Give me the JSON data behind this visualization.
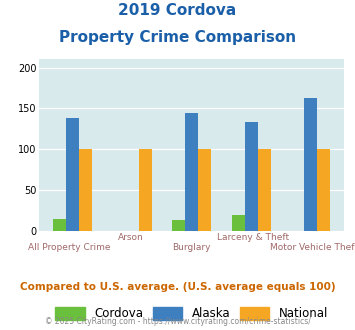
{
  "title_line1": "2019 Cordova",
  "title_line2": "Property Crime Comparison",
  "categories": [
    "All Property Crime",
    "Arson",
    "Burglary",
    "Larceny & Theft",
    "Motor Vehicle Theft"
  ],
  "cordova": [
    15,
    0,
    14,
    19,
    0
  ],
  "alaska": [
    138,
    0,
    145,
    133,
    163
  ],
  "national": [
    100,
    100,
    100,
    100,
    100
  ],
  "bar_colors": {
    "cordova": "#6abf3c",
    "alaska": "#3d7fbf",
    "national": "#f5a623"
  },
  "ylim": [
    0,
    210
  ],
  "yticks": [
    0,
    50,
    100,
    150,
    200
  ],
  "background_color": "#d8eaec",
  "title_color": "#1a5fa8",
  "xlabel_color_upper": "#b07070",
  "xlabel_color_lower": "#a06868",
  "footer_text": "Compared to U.S. average. (U.S. average equals 100)",
  "footer_color": "#cc6600",
  "copyright_text": "© 2025 CityRating.com - https://www.cityrating.com/crime-statistics/",
  "copyright_color": "#888888",
  "legend_labels": [
    "Cordova",
    "Alaska",
    "National"
  ],
  "bar_width": 0.22
}
